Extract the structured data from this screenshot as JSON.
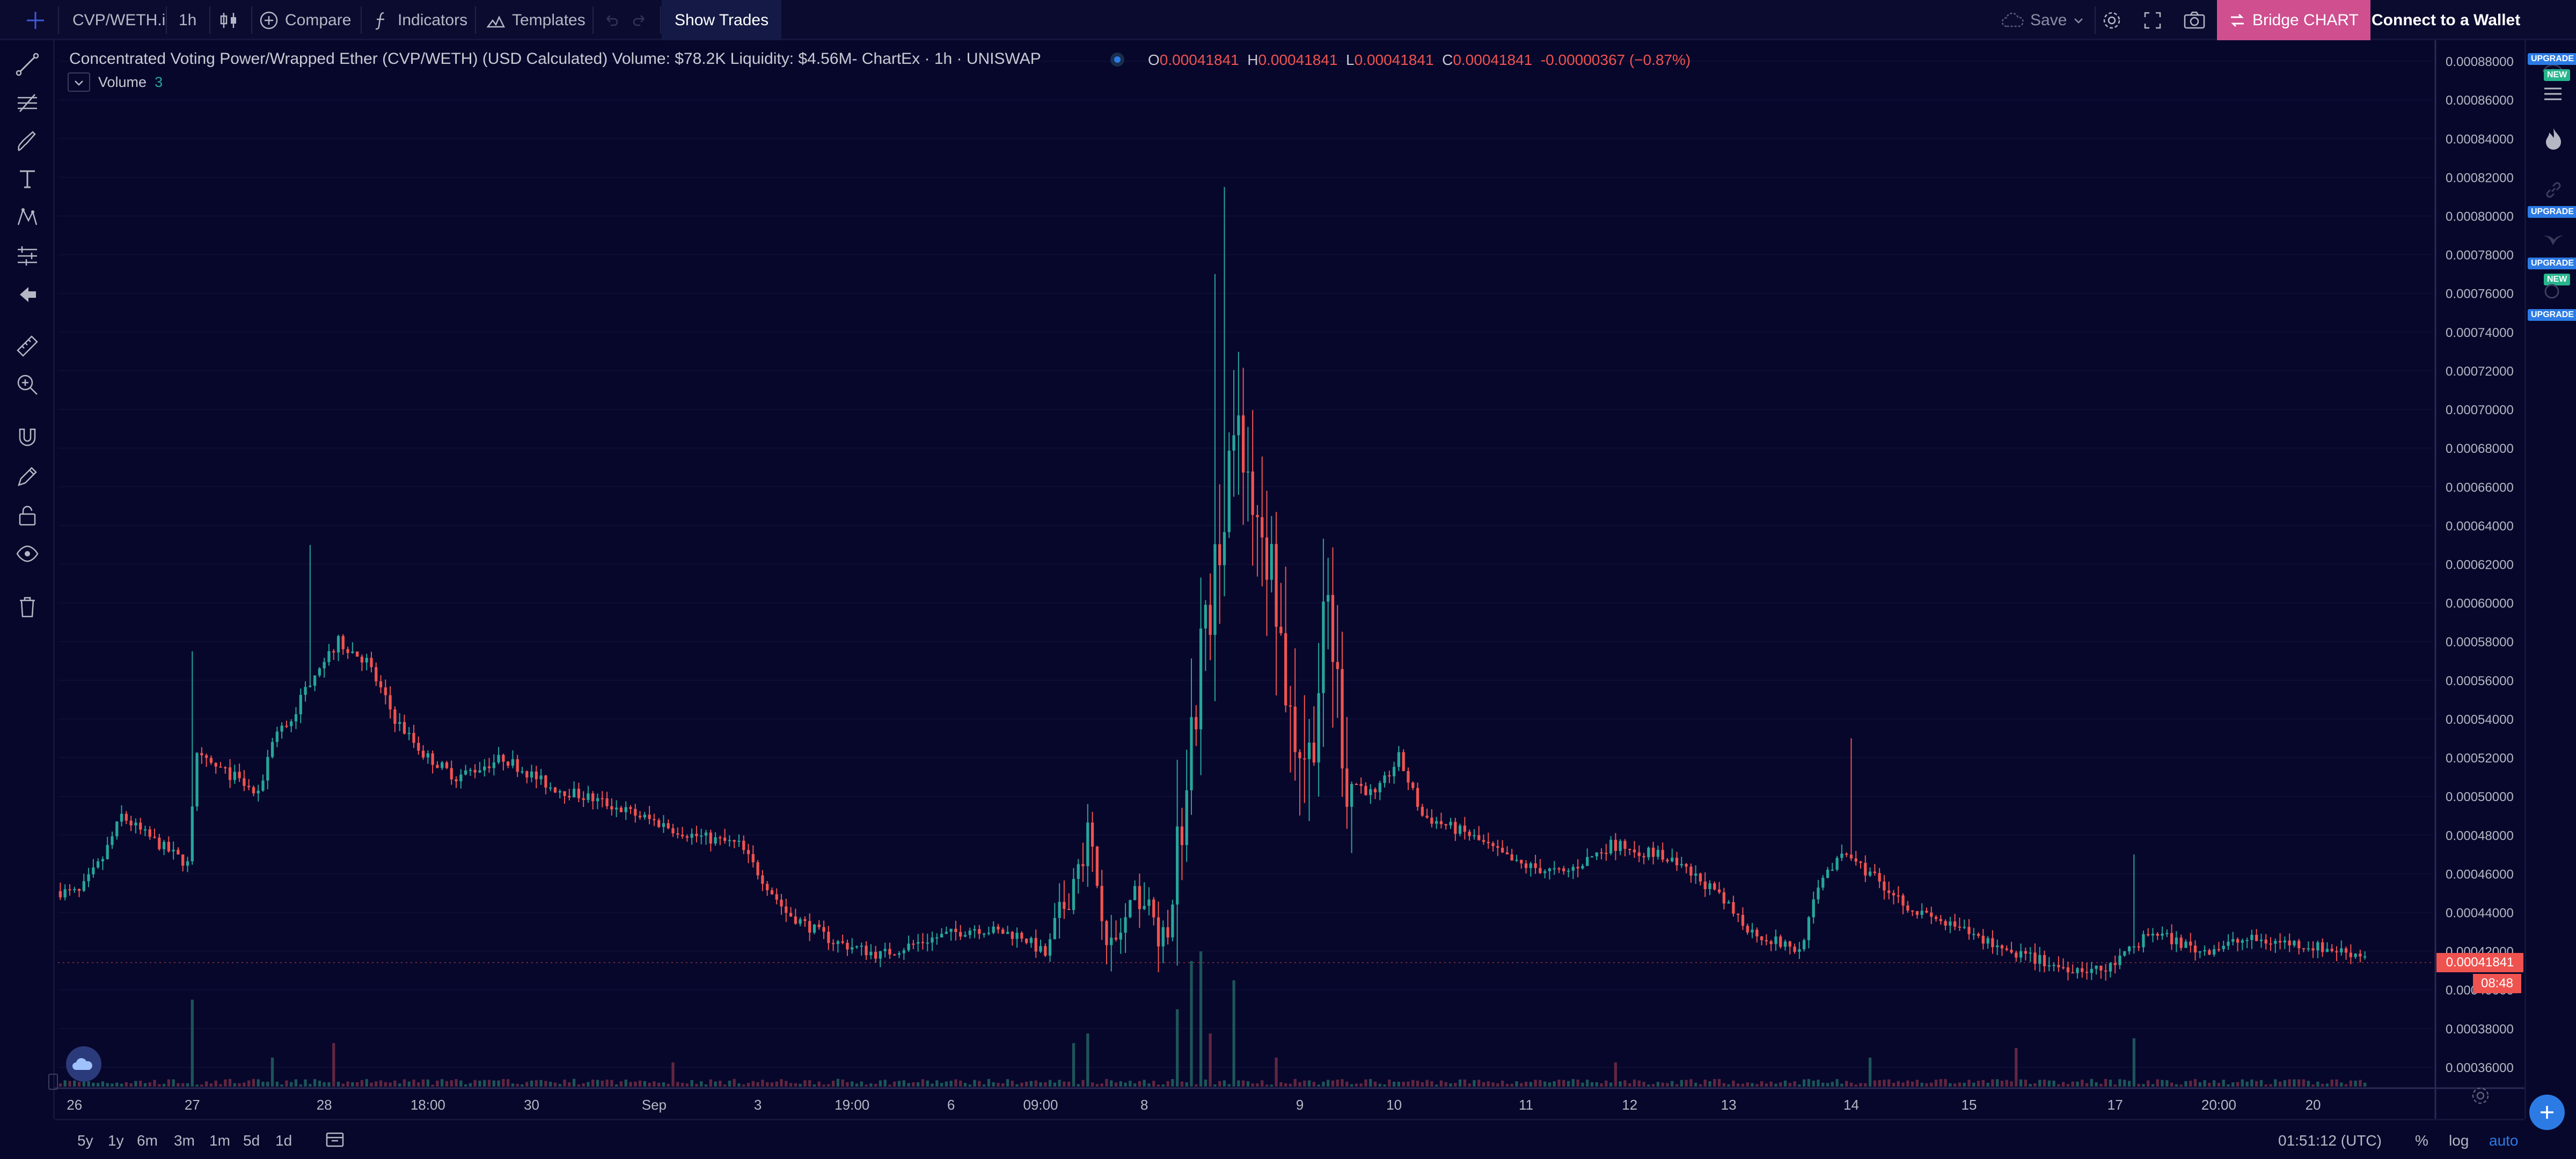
{
  "topbar": {
    "symbol": "CVP/WETH.i",
    "interval": "1h",
    "compare": "Compare",
    "indicators": "Indicators",
    "templates": "Templates",
    "show_trades": "Show Trades",
    "save": "Save",
    "bridge": "Bridge CHART",
    "wallet": "Connect to a Wallet"
  },
  "legend": {
    "title": "Concentrated Voting Power/Wrapped Ether (CVP/WETH) (USD Calculated) Volume: $78.2K Liquidity: $4.56M- ChartEx · 1h · UNISWAP",
    "ohlc": {
      "o_label": "O",
      "o": "0.00041841",
      "h_label": "H",
      "h": "0.00041841",
      "l_label": "L",
      "l": "0.00041841",
      "c_label": "C",
      "c": "0.00041841",
      "change": "-0.00000367 (−0.87%)"
    },
    "volume_label": "Volume",
    "volume_value": "3"
  },
  "right_badges": {
    "upgrade": "UPGRADE",
    "new": "NEW"
  },
  "price_tag": {
    "last": "0.00041841",
    "countdown": "08:48"
  },
  "bottombar": {
    "ranges": [
      "5y",
      "1y",
      "6m",
      "3m",
      "1m",
      "5d",
      "1d"
    ],
    "clock": "01:51:12 (UTC)",
    "percent": "%",
    "log": "log",
    "auto": "auto"
  },
  "colors": {
    "background": "#07072b",
    "up": "#26a69a",
    "down": "#ef5350",
    "accent_button": "#cf4f8f"
  },
  "chart_data": {
    "type": "candlestick",
    "title": "Concentrated Voting Power/Wrapped Ether (CVP/WETH) (USD Calculated)",
    "ylim": [
      0.00035,
      0.00089
    ],
    "y_ticks": [
      "0.00036000",
      "0.00038000",
      "0.00040000",
      "0.00042000",
      "0.00044000",
      "0.00046000",
      "0.00048000",
      "0.00050000",
      "0.00052000",
      "0.00054000",
      "0.00056000",
      "0.00058000",
      "0.00060000",
      "0.00062000",
      "0.00064000",
      "0.00066000",
      "0.00068000",
      "0.00070000",
      "0.00072000",
      "0.00074000",
      "0.00076000",
      "0.00078000",
      "0.00080000",
      "0.00082000",
      "0.00084000",
      "0.00086000",
      "0.00088000"
    ],
    "y_tick_values": [
      0.00036,
      0.00038,
      0.0004,
      0.00042,
      0.00044,
      0.00046,
      0.00048,
      0.0005,
      0.00052,
      0.00054,
      0.00056,
      0.00058,
      0.0006,
      0.00062,
      0.00064,
      0.00066,
      0.00068,
      0.0007,
      0.00072,
      0.00074,
      0.00076,
      0.00078,
      0.0008,
      0.00082,
      0.00084,
      0.00086,
      0.00088
    ],
    "x_ticks": [
      "26",
      "27",
      "28",
      "18:00",
      "30",
      "Sep",
      "3",
      "19:00",
      "6",
      "09:00",
      "8",
      "9",
      "10",
      "11",
      "12",
      "13",
      "14",
      "15",
      "17",
      "20:00",
      "20"
    ],
    "x_tick_index": [
      3,
      28,
      56,
      78,
      100,
      126,
      148,
      168,
      189,
      208,
      230,
      263,
      283,
      311,
      333,
      354,
      380,
      405,
      436,
      458,
      478
    ],
    "bar_count": 504,
    "price_keypoints": [
      [
        0,
        0.000451
      ],
      [
        5,
        0.00045
      ],
      [
        10,
        0.000468
      ],
      [
        14,
        0.00049
      ],
      [
        18,
        0.000482
      ],
      [
        28,
        0.000465
      ],
      [
        30,
        0.00052
      ],
      [
        38,
        0.00051
      ],
      [
        43,
        0.0005
      ],
      [
        46,
        0.00053
      ],
      [
        50,
        0.00054
      ],
      [
        55,
        0.000565
      ],
      [
        60,
        0.00058
      ],
      [
        66,
        0.00057
      ],
      [
        72,
        0.00054
      ],
      [
        78,
        0.000522
      ],
      [
        85,
        0.00051
      ],
      [
        95,
        0.00052
      ],
      [
        105,
        0.000505
      ],
      [
        115,
        0.000498
      ],
      [
        126,
        0.000488
      ],
      [
        135,
        0.00048
      ],
      [
        145,
        0.000475
      ],
      [
        155,
        0.00044
      ],
      [
        165,
        0.000425
      ],
      [
        175,
        0.000418
      ],
      [
        185,
        0.000426
      ],
      [
        195,
        0.000432
      ],
      [
        205,
        0.000428
      ],
      [
        210,
        0.000418
      ],
      [
        215,
        0.00045
      ],
      [
        219,
        0.00048
      ],
      [
        224,
        0.00042
      ],
      [
        230,
        0.00045
      ],
      [
        236,
        0.00042
      ],
      [
        240,
        0.00052
      ],
      [
        245,
        0.0006
      ],
      [
        250,
        0.00069
      ],
      [
        254,
        0.00066
      ],
      [
        258,
        0.00062
      ],
      [
        262,
        0.00054
      ],
      [
        266,
        0.00052
      ],
      [
        270,
        0.0006
      ],
      [
        274,
        0.00051
      ],
      [
        280,
        0.0005
      ],
      [
        285,
        0.00052
      ],
      [
        290,
        0.00049
      ],
      [
        300,
        0.00048
      ],
      [
        310,
        0.000465
      ],
      [
        320,
        0.00046
      ],
      [
        330,
        0.000475
      ],
      [
        340,
        0.00047
      ],
      [
        350,
        0.000455
      ],
      [
        360,
        0.00043
      ],
      [
        370,
        0.00042
      ],
      [
        375,
        0.00046
      ],
      [
        380,
        0.00047
      ],
      [
        385,
        0.00046
      ],
      [
        395,
        0.00044
      ],
      [
        405,
        0.00043
      ],
      [
        415,
        0.00042
      ],
      [
        425,
        0.000412
      ],
      [
        435,
        0.00041
      ],
      [
        440,
        0.00042
      ],
      [
        445,
        0.00043
      ],
      [
        455,
        0.00042
      ],
      [
        465,
        0.000426
      ],
      [
        475,
        0.000424
      ],
      [
        485,
        0.00042
      ],
      [
        490,
        0.000418
      ]
    ],
    "volume_spikes": [
      [
        28,
        0.9
      ],
      [
        45,
        0.3
      ],
      [
        58,
        0.45
      ],
      [
        130,
        0.25
      ],
      [
        215,
        0.45
      ],
      [
        218,
        0.55
      ],
      [
        237,
        0.8
      ],
      [
        240,
        1.3
      ],
      [
        242,
        1.4
      ],
      [
        244,
        0.55
      ],
      [
        249,
        1.1
      ],
      [
        258,
        0.3
      ],
      [
        330,
        0.25
      ],
      [
        384,
        0.3
      ],
      [
        415,
        0.4
      ],
      [
        440,
        0.5
      ]
    ]
  }
}
